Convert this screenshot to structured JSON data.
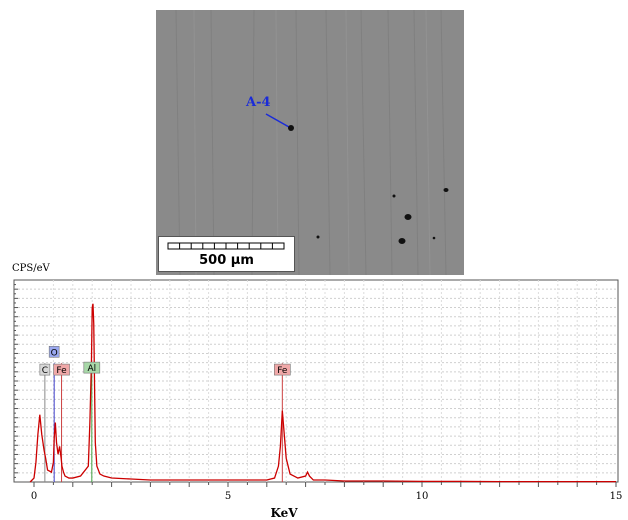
{
  "micrograph": {
    "site_label": "A-4",
    "scale_bar_label": "500 µm",
    "colors": {
      "background": "#8a8a8a",
      "marker": "#1a2bd8"
    }
  },
  "chart_data": {
    "type": "line",
    "ylabel": "CPS/eV",
    "xlabel": "KeV",
    "xlim": [
      0,
      15
    ],
    "ylim": [
      0,
      100
    ],
    "x_ticks": [
      0,
      5,
      10,
      15
    ],
    "grid": true,
    "series": [
      {
        "color": "#cc0000",
        "x": [
          -0.1,
          0.0,
          0.05,
          0.1,
          0.15,
          0.2,
          0.26,
          0.3,
          0.35,
          0.45,
          0.5,
          0.52,
          0.55,
          0.58,
          0.62,
          0.66,
          0.7,
          0.72,
          0.76,
          0.8,
          0.9,
          1.0,
          1.2,
          1.4,
          1.44,
          1.48,
          1.5,
          1.52,
          1.54,
          1.56,
          1.58,
          1.62,
          1.7,
          1.8,
          2.0,
          2.5,
          3.0,
          4.0,
          5.0,
          6.0,
          6.2,
          6.3,
          6.35,
          6.4,
          6.45,
          6.5,
          6.6,
          6.8,
          7.0,
          7.05,
          7.1,
          7.2,
          7.5,
          8.0,
          9.0,
          10.0,
          11.0,
          12.0,
          13.0,
          14.0,
          15.0
        ],
        "y": [
          0,
          2,
          10,
          24,
          34,
          24,
          16,
          12,
          6,
          5,
          10,
          22,
          30,
          20,
          14,
          18,
          12,
          8,
          5,
          3,
          2,
          2,
          3,
          8,
          30,
          60,
          88,
          90,
          80,
          50,
          20,
          8,
          4,
          3,
          2,
          1.5,
          1,
          1,
          1,
          1,
          2,
          8,
          18,
          36,
          24,
          12,
          4,
          2,
          3,
          5,
          3,
          1,
          1,
          0.5,
          0.5,
          0.3,
          0.3,
          0.2,
          0.2,
          0.2,
          0.2
        ]
      }
    ],
    "annotations": [
      {
        "label": "C",
        "x": 0.28,
        "y": 55,
        "color": "#d8d8d8"
      },
      {
        "label": "O",
        "x": 0.52,
        "y": 64,
        "color": "#9aa8f0"
      },
      {
        "label": "Fe",
        "x": 0.71,
        "y": 55,
        "color": "#f0a8a8"
      },
      {
        "label": "Al",
        "x": 1.49,
        "y": 56,
        "color": "#a8d8a8"
      },
      {
        "label": "Fe",
        "x": 6.4,
        "y": 55,
        "color": "#f0a8a8"
      }
    ],
    "annotation_lines": [
      {
        "x": 0.28,
        "color": "#888888"
      },
      {
        "x": 0.52,
        "color": "#4040cc"
      },
      {
        "x": 0.71,
        "color": "#cc4040"
      },
      {
        "x": 1.49,
        "color": "#40a040"
      },
      {
        "x": 6.4,
        "color": "#cc4040"
      }
    ]
  }
}
